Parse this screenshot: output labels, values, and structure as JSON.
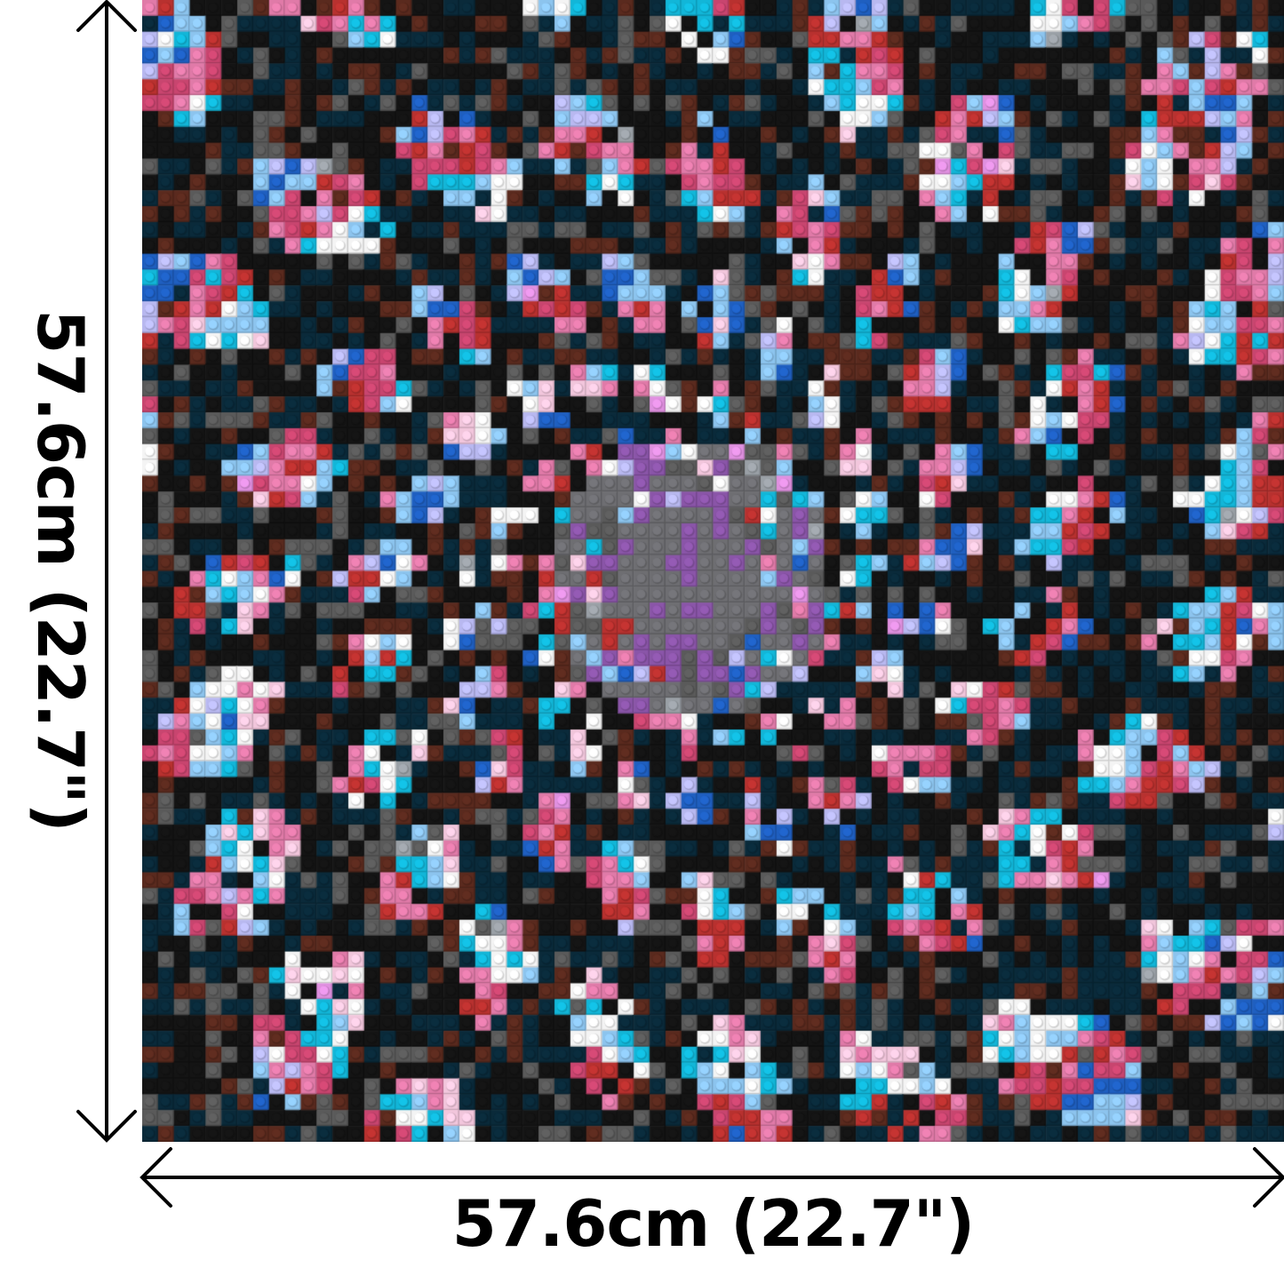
{
  "dimensions": {
    "width_label": "57.6cm (22.7\")",
    "height_label": "57.6cm (22.7\")"
  },
  "mosaic": {
    "studs_per_side": 72,
    "palette": {
      "black": "#141414",
      "dark_navy": "#0a2a3a",
      "dark_gray": "#5a5a5a",
      "gray": "#6e6e72",
      "medium_gray": "#9aa0a6",
      "white": "#f4f4f4",
      "light_pink": "#f2c6dc",
      "pink": "#e07aa8",
      "dark_pink": "#c8456f",
      "red": "#b8312f",
      "brown": "#5a2a1e",
      "cyan": "#12b6d8",
      "light_blue": "#8cc4ee",
      "lavender": "#b8b8f0",
      "blue": "#1f5fc0",
      "purple": "#8a55a8",
      "orchid": "#e090e0"
    }
  }
}
